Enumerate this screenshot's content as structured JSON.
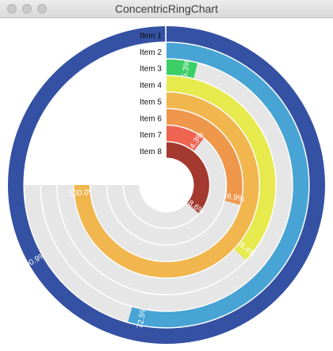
{
  "window": {
    "title": "ConcentricRingChart"
  },
  "controls": {
    "close": "close-button",
    "minimize": "minimize-button",
    "zoom": "zoom-button"
  },
  "chart_data": {
    "type": "concentric-ring",
    "title": "",
    "max_sweep_percent": 100,
    "track_color": "#e6e6e6",
    "items": [
      {
        "name": "Item 1",
        "value": 100,
        "label": "",
        "color": "#3451a3"
      },
      {
        "name": "Item 2",
        "value": 72.5,
        "label": "72.5%",
        "color": "#47a4d5"
      },
      {
        "name": "Item 3",
        "value": 5.3,
        "label": "5.3%",
        "color": "#3ccf68"
      },
      {
        "name": "Item 4",
        "value": 49.4,
        "label": "49.4%",
        "color": "#e6ea4d"
      },
      {
        "name": "Item 5",
        "value": 100.0,
        "label": "100.0%",
        "color": "#f1b64e"
      },
      {
        "name": "Item 6",
        "value": 38.9,
        "label": "38.9%",
        "color": "#ef974b"
      },
      {
        "name": "Item 7",
        "value": 14.3,
        "label": "14.3%",
        "color": "#ef6351"
      },
      {
        "name": "Item 8",
        "value": 48.6,
        "label": "48.6%",
        "color": "#a43a2f"
      }
    ],
    "outer_partial": {
      "value": 90.9,
      "label": "90.9%"
    }
  }
}
